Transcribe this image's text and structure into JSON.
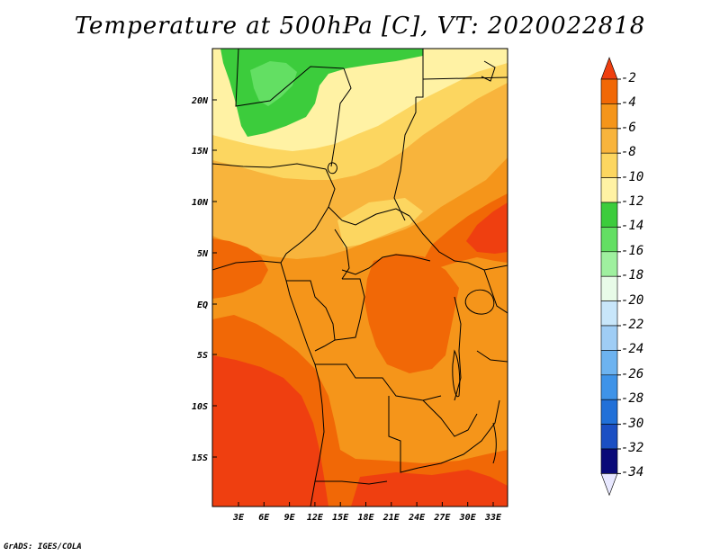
{
  "title": "Temperature at 500hPa [C], VT: 2020022818",
  "credit": "GrADS: IGES/COLA",
  "map": {
    "lat_ticks": [
      "20N",
      "15N",
      "10N",
      "5N",
      "EQ",
      "5S",
      "10S",
      "15S"
    ],
    "lon_ticks": [
      "3E",
      "6E",
      "9E",
      "12E",
      "15E",
      "18E",
      "21E",
      "24E",
      "27E",
      "30E",
      "33E"
    ]
  },
  "legend": {
    "labels": [
      "-2",
      "-4",
      "-6",
      "-8",
      "-10",
      "-12",
      "-14",
      "-16",
      "-18",
      "-20",
      "-22",
      "-24",
      "-26",
      "-28",
      "-30",
      "-32",
      "-34"
    ],
    "colors": [
      "#ef3f10",
      "#f16806",
      "#f5951a",
      "#f8b43c",
      "#fcd660",
      "#fff2a4",
      "#3ccc3c",
      "#63df63",
      "#9ff09f",
      "#e8fbe8",
      "#c8e6fa",
      "#9fcdf5",
      "#6db3f0",
      "#3e93e8",
      "#2170d8",
      "#1b4fc3",
      "#0a0a78",
      "#e8e8ff"
    ]
  }
}
